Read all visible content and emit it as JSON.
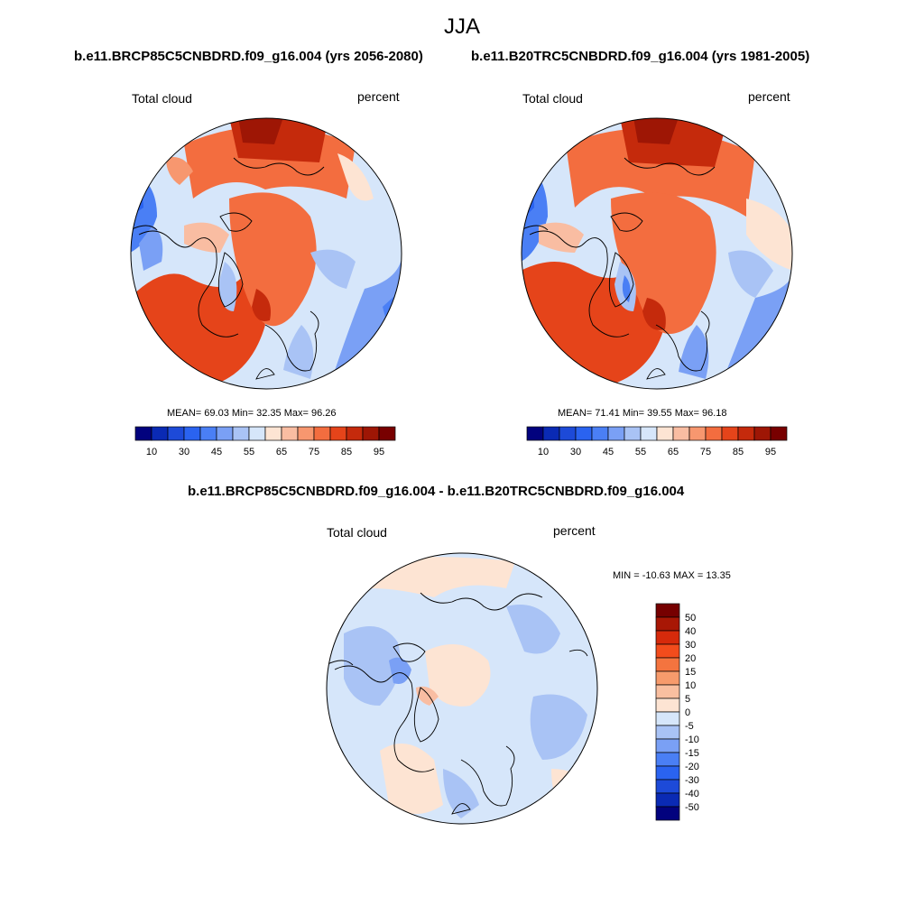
{
  "figure": {
    "title": "JJA",
    "left_run_title": "b.e11.BRCP85C5CNBDRD.f09_g16.004 (yrs 2056-2080)",
    "right_run_title": "b.e11.B20TRC5CNBDRD.f09_g16.004 (yrs 1981-2005)",
    "diff_title": "b.e11.BRCP85C5CNBDRD.f09_g16.004 - b.e11.B20TRC5CNBDRD.f09_g16.004"
  },
  "panels": {
    "left": {
      "variable": "Total cloud",
      "units": "percent",
      "stats": {
        "mean_label": "MEAN=",
        "mean": "69.03",
        "min_label": "Min=",
        "min": "32.35",
        "max_label": "Max=",
        "max": "96.26"
      }
    },
    "right": {
      "variable": "Total cloud",
      "units": "percent",
      "stats": {
        "mean_label": "MEAN=",
        "mean": "71.41",
        "min_label": "Min=",
        "min": "39.55",
        "max_label": "Max=",
        "max": "96.18"
      }
    },
    "diff": {
      "variable": "Total cloud",
      "units": "percent",
      "minmax": "MIN = -10.63 MAX =  13.35"
    }
  },
  "colorbar_abs": {
    "colors": [
      "#02027e",
      "#0a2ab4",
      "#1d4ad8",
      "#2a63f0",
      "#4a7ff5",
      "#7aa0f5",
      "#a9c3f5",
      "#d6e6fa",
      "#fde4d3",
      "#f9bda2",
      "#f7976f",
      "#f36d3f",
      "#e5441a",
      "#c52a0c",
      "#9e1605",
      "#780000"
    ],
    "labels": [
      "10",
      "30",
      "45",
      "55",
      "65",
      "75",
      "85",
      "95"
    ]
  },
  "colorbar_diff": {
    "colors": [
      "#760000",
      "#a81705",
      "#d62a0b",
      "#f24c1c",
      "#f4743f",
      "#f79b6c",
      "#f9bfa0",
      "#fde4d3",
      "#d6e6fa",
      "#a9c3f5",
      "#7aa0f5",
      "#4a7ff5",
      "#2a63f0",
      "#1d4ad8",
      "#0a2ab4",
      "#02027e"
    ],
    "labels": [
      "50",
      "40",
      "30",
      "20",
      "15",
      "10",
      "5",
      "0",
      "-5",
      "-10",
      "-15",
      "-20",
      "-30",
      "-40",
      "-50"
    ]
  }
}
